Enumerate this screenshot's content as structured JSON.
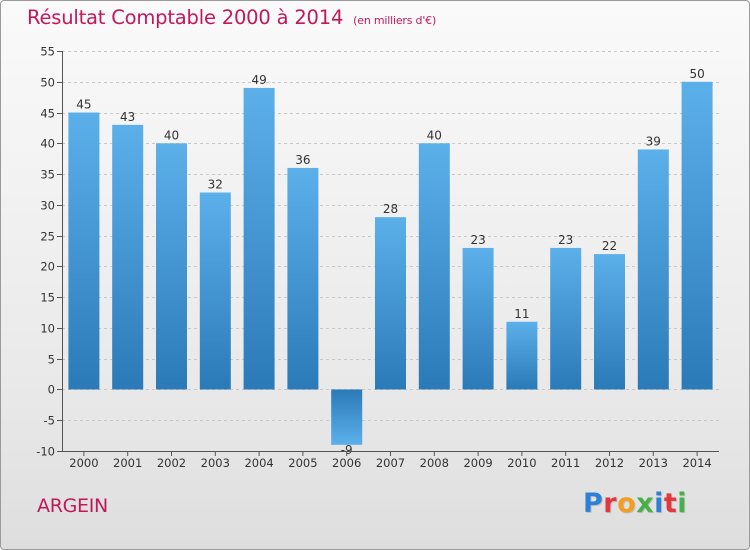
{
  "header": {
    "title": "Résultat Comptable 2000 à 2014",
    "subtitle": "(en milliers d'€)"
  },
  "footer": {
    "commune": "ARGEIN",
    "logo": {
      "letters": [
        "P",
        "r",
        "o",
        "x",
        "i",
        "t",
        "i"
      ],
      "colors": [
        "#2e7fd6",
        "#e0383e",
        "#f0a020",
        "#47b04b",
        "#2e7fd6",
        "#e0383e",
        "#47b04b"
      ]
    }
  },
  "colors": {
    "bar_light": "#5cb0ea",
    "bar_dark": "#2b7ab8",
    "grid": "#c8c8c8",
    "axis": "#555555",
    "text": "#333333",
    "accent": "#c2185b"
  },
  "chart_data": {
    "type": "bar",
    "title": "Résultat Comptable 2000 à 2014",
    "subtitle": "(en milliers d'€)",
    "categories": [
      "2000",
      "2001",
      "2002",
      "2003",
      "2004",
      "2005",
      "2006",
      "2007",
      "2008",
      "2009",
      "2010",
      "2011",
      "2012",
      "2013",
      "2014"
    ],
    "values": [
      45,
      43,
      40,
      32,
      49,
      36,
      -9,
      28,
      40,
      23,
      11,
      23,
      22,
      39,
      50
    ],
    "labels": [
      "45",
      "43",
      "40",
      "32",
      "49",
      "36",
      "-9",
      "28",
      "40",
      "23",
      "11",
      "23",
      "22",
      "39",
      "50"
    ],
    "ylim": [
      -10,
      55
    ],
    "yticks": [
      -10,
      -5,
      0,
      5,
      10,
      15,
      20,
      25,
      30,
      35,
      40,
      45,
      50,
      55
    ],
    "ytick_labels": [
      "-10",
      "-5",
      "0",
      "5",
      "10",
      "15",
      "20",
      "25",
      "30",
      "35",
      "40",
      "45",
      "50",
      "55"
    ],
    "grid": true,
    "xlabel": "",
    "ylabel": ""
  }
}
